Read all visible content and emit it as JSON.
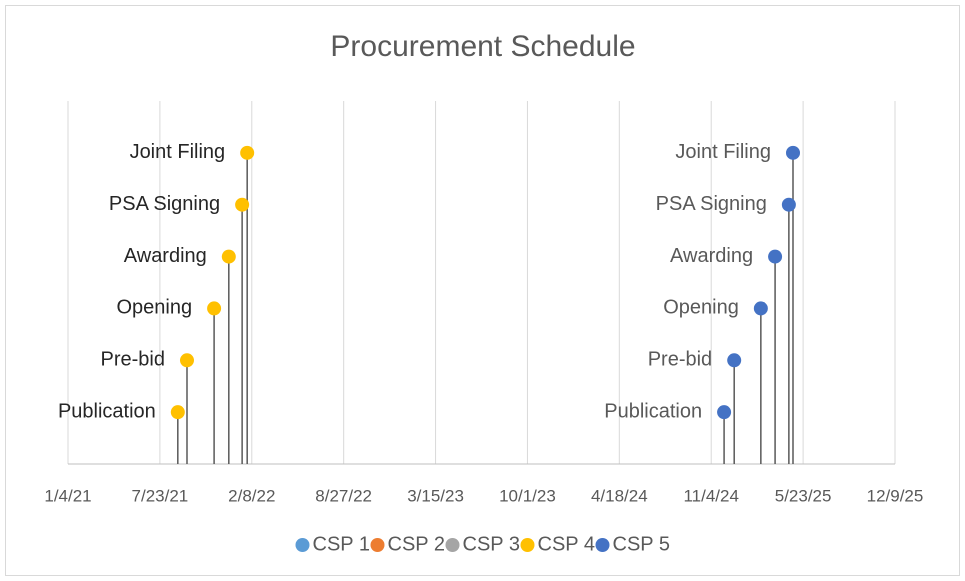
{
  "chart_data": {
    "type": "scatter",
    "title": "Procurement Schedule",
    "xlim": [
      "1/4/21",
      "12/9/25"
    ],
    "xticks": [
      "1/4/21",
      "7/23/21",
      "2/8/22",
      "8/27/22",
      "3/15/23",
      "10/1/23",
      "4/18/24",
      "11/4/24",
      "5/23/25",
      "12/9/25"
    ],
    "ylim": [
      0,
      7
    ],
    "grid": true,
    "drop_lines": true,
    "legend": "bottom",
    "series": [
      {
        "name": "CSP 1",
        "color": "#5b9bd5",
        "x": [],
        "values": [],
        "labels": []
      },
      {
        "name": "CSP 2",
        "color": "#ed7d31",
        "x": [],
        "values": [],
        "labels": []
      },
      {
        "name": "CSP 3",
        "color": "#a5a5a5",
        "x": [],
        "values": [],
        "labels": []
      },
      {
        "name": "CSP 4",
        "color": "#ffc000",
        "x": [
          "8/31/21",
          "9/20/21",
          "11/18/21",
          "12/20/21",
          "1/18/22",
          "1/29/22"
        ],
        "values": [
          1,
          2,
          3,
          4,
          5,
          6
        ],
        "labels": [
          "Publication",
          "Pre-bid",
          "Opening",
          "Awarding",
          "PSA Signing",
          "Joint Filing"
        ]
      },
      {
        "name": "CSP 5",
        "color": "#4472c4",
        "x": [
          "12/2/24",
          "12/24/24",
          "2/20/25",
          "3/23/25",
          "4/22/25",
          "5/1/25"
        ],
        "values": [
          1,
          2,
          3,
          4,
          5,
          6
        ],
        "labels": [
          "Publication",
          "Pre-bid",
          "Opening",
          "Awarding",
          "PSA Signing",
          "Joint Filing"
        ]
      }
    ]
  }
}
